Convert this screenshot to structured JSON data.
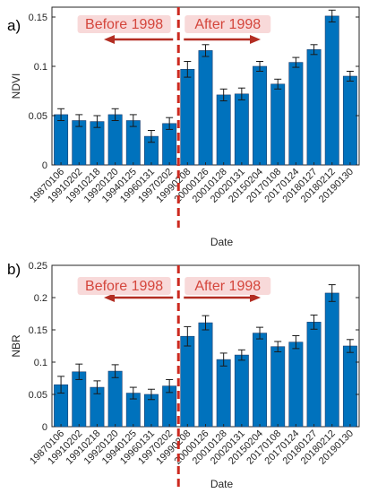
{
  "colors": {
    "bar": "#0072BD",
    "bar_edge": "#1f3f6e",
    "divider": "#cc2a20",
    "arrow": "#b32d22",
    "period_text": "#d4463c",
    "period_bg": "#f8d9d9",
    "error": "#1a1a1a"
  },
  "chart_data": [
    {
      "type": "bar",
      "panel_label": "a)",
      "categories": [
        "19870106",
        "19910202",
        "19910218",
        "19920120",
        "19940125",
        "19960131",
        "19970202",
        "19990208",
        "20000126",
        "20010128",
        "20020131",
        "20150204",
        "20170108",
        "20170124",
        "20180127",
        "20180212",
        "20190130"
      ],
      "values": [
        0.051,
        0.045,
        0.044,
        0.051,
        0.045,
        0.029,
        0.042,
        0.097,
        0.116,
        0.071,
        0.072,
        0.1,
        0.082,
        0.104,
        0.117,
        0.151,
        0.09
      ],
      "errors": [
        0.006,
        0.006,
        0.006,
        0.006,
        0.006,
        0.006,
        0.006,
        0.008,
        0.006,
        0.006,
        0.006,
        0.005,
        0.005,
        0.005,
        0.005,
        0.006,
        0.005
      ],
      "xlabel": "Date",
      "ylabel": "NDVI",
      "ylim": [
        0,
        0.16
      ],
      "yticks": [
        "0",
        "0.05",
        "0.1",
        "0.15"
      ],
      "annotations": {
        "before": "Before 1998",
        "after": "After 1998"
      },
      "divider_between": [
        6,
        7
      ]
    },
    {
      "type": "bar",
      "panel_label": "b)",
      "categories": [
        "19870106",
        "19910202",
        "19910218",
        "19920120",
        "19940125",
        "19960131",
        "19970202",
        "19990208",
        "20000126",
        "20010128",
        "20020131",
        "20150204",
        "20170108",
        "20170124",
        "20180127",
        "20180212",
        "20190130"
      ],
      "values": [
        0.065,
        0.085,
        0.061,
        0.086,
        0.052,
        0.05,
        0.063,
        0.14,
        0.161,
        0.104,
        0.111,
        0.145,
        0.124,
        0.131,
        0.162,
        0.207,
        0.125
      ],
      "errors": [
        0.013,
        0.012,
        0.01,
        0.01,
        0.009,
        0.008,
        0.01,
        0.015,
        0.011,
        0.01,
        0.008,
        0.009,
        0.008,
        0.01,
        0.011,
        0.013,
        0.01
      ],
      "xlabel": "Date",
      "ylabel": "NBR",
      "ylim": [
        0,
        0.25
      ],
      "yticks": [
        "0",
        "0.05",
        "0.1",
        "0.15",
        "0.2",
        "0.25"
      ],
      "annotations": {
        "before": "Before 1998",
        "after": "After 1998"
      },
      "divider_between": [
        6,
        7
      ]
    }
  ]
}
